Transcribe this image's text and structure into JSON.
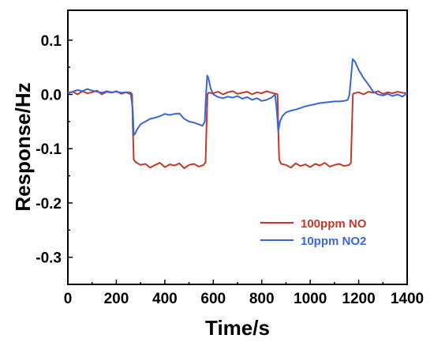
{
  "chart_data": {
    "type": "line",
    "xlabel": "Time/s",
    "ylabel": "Response/Hz",
    "xlim": [
      0,
      1400
    ],
    "ylim": [
      -0.35,
      0.155
    ],
    "x_ticks": [
      "0",
      "200",
      "400",
      "600",
      "800",
      "1000",
      "1200",
      "1400"
    ],
    "y_ticks": [
      "0.1",
      "0.0",
      "-0.1",
      "-0.2",
      "-0.3"
    ],
    "legend_position": "lower-right",
    "series": [
      {
        "name": "100ppm NO",
        "color": "#c0392b",
        "x": [
          0,
          20,
          40,
          60,
          80,
          100,
          120,
          140,
          160,
          180,
          200,
          220,
          240,
          260,
          265,
          268,
          272,
          280,
          300,
          320,
          340,
          360,
          380,
          400,
          420,
          440,
          460,
          480,
          500,
          520,
          540,
          560,
          568,
          572,
          576,
          580,
          600,
          620,
          640,
          660,
          680,
          700,
          720,
          740,
          760,
          780,
          800,
          820,
          840,
          860,
          865,
          868,
          872,
          880,
          900,
          920,
          940,
          960,
          980,
          1000,
          1020,
          1040,
          1060,
          1080,
          1100,
          1120,
          1140,
          1160,
          1168,
          1172,
          1176,
          1180,
          1200,
          1220,
          1240,
          1260,
          1280,
          1300,
          1320,
          1340,
          1360,
          1380,
          1400
        ],
        "y": [
          0.003,
          0.005,
          0.0,
          0.006,
          0.002,
          0.004,
          0.007,
          0.0,
          0.005,
          0.003,
          0.006,
          0.001,
          0.004,
          0.003,
          0.0,
          -0.06,
          -0.12,
          -0.125,
          -0.13,
          -0.128,
          -0.135,
          -0.13,
          -0.126,
          -0.134,
          -0.129,
          -0.131,
          -0.127,
          -0.136,
          -0.13,
          -0.128,
          -0.133,
          -0.13,
          -0.125,
          -0.06,
          0.0,
          0.003,
          0.002,
          0.005,
          0.0,
          0.004,
          0.006,
          0.001,
          0.003,
          0.005,
          0.0,
          0.004,
          0.002,
          0.006,
          0.003,
          0.001,
          0.0,
          -0.06,
          -0.12,
          -0.128,
          -0.13,
          -0.135,
          -0.127,
          -0.132,
          -0.129,
          -0.134,
          -0.128,
          -0.131,
          -0.126,
          -0.133,
          -0.13,
          -0.128,
          -0.132,
          -0.13,
          -0.126,
          -0.06,
          0.0,
          0.002,
          0.004,
          0.0,
          0.005,
          0.003,
          0.006,
          0.001,
          0.004,
          0.002,
          0.005,
          0.003,
          0.002
        ]
      },
      {
        "name": "10ppm NO2",
        "color": "#3a66d6",
        "x": [
          0,
          20,
          40,
          60,
          80,
          100,
          120,
          140,
          160,
          180,
          200,
          220,
          240,
          260,
          268,
          272,
          278,
          285,
          300,
          320,
          340,
          360,
          380,
          400,
          420,
          440,
          460,
          480,
          500,
          520,
          540,
          555,
          565,
          570,
          575,
          580,
          590,
          600,
          620,
          640,
          660,
          680,
          700,
          720,
          740,
          760,
          780,
          800,
          820,
          840,
          855,
          862,
          868,
          875,
          885,
          900,
          920,
          940,
          960,
          980,
          1000,
          1020,
          1040,
          1060,
          1080,
          1100,
          1120,
          1140,
          1155,
          1162,
          1168,
          1175,
          1185,
          1200,
          1220,
          1240,
          1260,
          1280,
          1300,
          1320,
          1340,
          1360,
          1380,
          1400
        ],
        "y": [
          0.002,
          0.005,
          0.008,
          0.006,
          0.01,
          0.007,
          0.005,
          0.003,
          0.006,
          0.004,
          0.005,
          0.003,
          0.004,
          0.0,
          -0.03,
          -0.075,
          -0.072,
          -0.065,
          -0.055,
          -0.05,
          -0.045,
          -0.043,
          -0.04,
          -0.036,
          -0.038,
          -0.036,
          -0.035,
          -0.045,
          -0.05,
          -0.052,
          -0.055,
          -0.058,
          -0.05,
          0.0,
          0.035,
          0.03,
          0.01,
          0.0,
          -0.005,
          -0.007,
          -0.004,
          -0.006,
          -0.003,
          -0.008,
          -0.005,
          -0.01,
          -0.007,
          -0.012,
          -0.01,
          -0.006,
          0.0,
          -0.03,
          -0.068,
          -0.05,
          -0.04,
          -0.033,
          -0.03,
          -0.028,
          -0.025,
          -0.022,
          -0.02,
          -0.018,
          -0.016,
          -0.015,
          -0.014,
          -0.013,
          -0.013,
          -0.012,
          -0.01,
          0.0,
          0.03,
          0.065,
          0.06,
          0.045,
          0.03,
          0.018,
          0.005,
          0.0,
          -0.002,
          0.001,
          -0.003,
          0.0,
          -0.004,
          0.002
        ]
      }
    ]
  }
}
